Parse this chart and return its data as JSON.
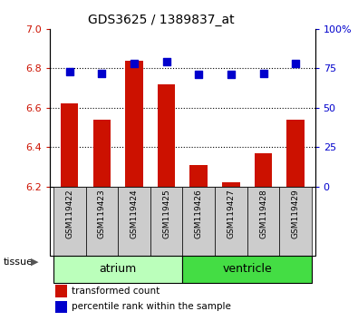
{
  "title": "GDS3625 / 1389837_at",
  "samples": [
    "GSM119422",
    "GSM119423",
    "GSM119424",
    "GSM119425",
    "GSM119426",
    "GSM119427",
    "GSM119428",
    "GSM119429"
  ],
  "bar_values": [
    6.62,
    6.54,
    6.84,
    6.72,
    6.31,
    6.22,
    6.37,
    6.54
  ],
  "percentile_values": [
    73,
    72,
    78,
    79,
    71,
    71,
    72,
    78
  ],
  "bar_base": 6.2,
  "ylim": [
    6.2,
    7.0
  ],
  "y2lim": [
    0,
    100
  ],
  "yticks": [
    6.2,
    6.4,
    6.6,
    6.8,
    7.0
  ],
  "y2ticks": [
    0,
    25,
    50,
    75,
    100
  ],
  "bar_color": "#cc1100",
  "dot_color": "#0000cc",
  "sample_box_color": "#cccccc",
  "atrium_color": "#bbffbb",
  "ventricle_color": "#44dd44",
  "groups": [
    {
      "label": "atrium",
      "indices": [
        0,
        1,
        2,
        3
      ],
      "color": "#bbffbb"
    },
    {
      "label": "ventricle",
      "indices": [
        4,
        5,
        6,
        7
      ],
      "color": "#44dd44"
    }
  ],
  "ylabel_color": "#cc1100",
  "y2label_color": "#0000cc",
  "bar_width": 0.55,
  "dot_size": 28,
  "grid_yticks": [
    6.4,
    6.6,
    6.8
  ],
  "group_split": 3.5
}
